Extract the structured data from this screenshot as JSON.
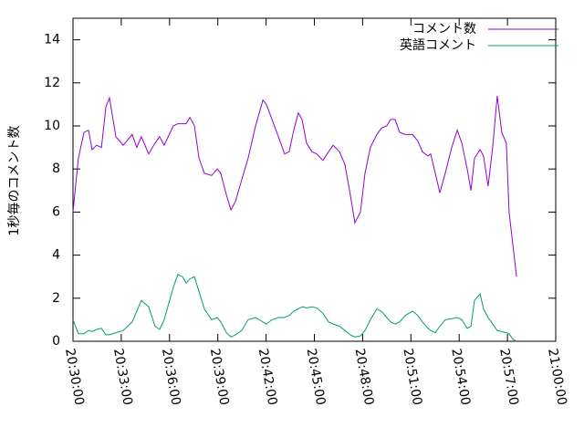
{
  "chart_data": {
    "type": "line",
    "ylabel": "1秒毎のコメント数",
    "x": [
      "20:30:00",
      "20:30:20",
      "20:30:41",
      "20:30:58",
      "20:31:11",
      "20:31:28",
      "20:31:46",
      "20:32:03",
      "20:32:16",
      "20:32:40",
      "20:33:07",
      "20:33:41",
      "20:33:58",
      "20:34:15",
      "20:34:42",
      "20:35:06",
      "20:35:23",
      "20:35:40",
      "20:36:14",
      "20:36:31",
      "20:36:48",
      "20:37:02",
      "20:37:16",
      "20:37:33",
      "20:37:50",
      "20:38:10",
      "20:38:37",
      "20:38:58",
      "20:39:11",
      "20:39:32",
      "20:39:49",
      "20:40:06",
      "20:40:29",
      "20:40:53",
      "20:41:21",
      "20:41:48",
      "20:42:01",
      "20:42:22",
      "20:42:46",
      "20:43:09",
      "20:43:26",
      "20:43:43",
      "20:44:00",
      "20:44:14",
      "20:44:31",
      "20:44:51",
      "20:45:09",
      "20:45:32",
      "20:45:53",
      "20:46:10",
      "20:46:34",
      "20:46:54",
      "20:47:14",
      "20:47:31",
      "20:47:52",
      "20:48:09",
      "20:48:29",
      "20:48:53",
      "20:49:10",
      "20:49:30",
      "20:49:44",
      "20:50:01",
      "20:50:18",
      "20:50:39",
      "20:51:06",
      "20:51:26",
      "20:51:43",
      "20:52:04",
      "20:52:14",
      "20:52:31",
      "20:52:48",
      "20:53:08",
      "20:53:32",
      "20:53:53",
      "20:54:10",
      "20:54:30",
      "20:54:44",
      "20:54:57",
      "20:55:18",
      "20:55:31",
      "20:55:48",
      "20:56:05",
      "20:56:22",
      "20:56:39",
      "20:56:56",
      "20:57:06",
      "20:57:20",
      "20:57:34"
    ],
    "series": [
      {
        "name": "コメント数",
        "color": "#9400d3",
        "values": [
          6.0,
          8.5,
          9.7,
          9.8,
          8.9,
          9.1,
          9.0,
          10.9,
          11.3,
          9.5,
          9.1,
          9.6,
          9.0,
          9.5,
          8.7,
          9.2,
          9.5,
          9.1,
          10.0,
          10.1,
          10.1,
          10.1,
          10.4,
          10.0,
          8.5,
          7.8,
          7.7,
          8.0,
          7.8,
          6.8,
          6.1,
          6.5,
          7.5,
          8.5,
          10.0,
          11.2,
          11.0,
          10.3,
          9.5,
          8.7,
          8.8,
          9.8,
          10.6,
          10.3,
          9.2,
          8.8,
          8.7,
          8.4,
          8.8,
          9.1,
          8.8,
          8.2,
          6.8,
          5.5,
          6.0,
          7.8,
          9.0,
          9.6,
          9.9,
          10.0,
          10.3,
          10.3,
          9.7,
          9.6,
          9.6,
          9.3,
          8.8,
          8.6,
          8.7,
          7.8,
          6.9,
          7.8,
          9.0,
          9.8,
          9.2,
          8.0,
          7.0,
          8.5,
          8.9,
          8.6,
          7.2,
          9.0,
          11.4,
          9.7,
          9.2,
          6.0,
          4.5,
          3.0
        ]
      },
      {
        "name": "英語コメント",
        "color": "#009e73",
        "values": [
          1.0,
          0.35,
          0.35,
          0.5,
          0.45,
          0.55,
          0.6,
          0.3,
          0.3,
          0.4,
          0.5,
          0.9,
          1.4,
          1.9,
          1.6,
          0.7,
          0.55,
          1.0,
          2.5,
          3.1,
          3.0,
          2.7,
          2.9,
          3.0,
          2.3,
          1.5,
          1.0,
          1.1,
          0.9,
          0.4,
          0.2,
          0.3,
          0.5,
          1.0,
          1.1,
          0.9,
          0.8,
          1.0,
          1.1,
          1.1,
          1.2,
          1.4,
          1.5,
          1.6,
          1.55,
          1.6,
          1.55,
          1.3,
          0.9,
          0.8,
          0.7,
          0.5,
          0.3,
          0.2,
          0.25,
          0.5,
          1.0,
          1.5,
          1.4,
          1.1,
          0.9,
          0.8,
          0.9,
          1.2,
          1.4,
          1.2,
          0.9,
          0.6,
          0.5,
          0.4,
          0.7,
          1.0,
          1.05,
          1.1,
          1.0,
          0.6,
          0.7,
          1.9,
          2.2,
          1.5,
          1.1,
          0.8,
          0.5,
          0.45,
          0.4,
          0.35,
          0.1,
          0
        ]
      }
    ],
    "xlim": [
      "20:30:00",
      "21:00:00"
    ],
    "xticks": [
      "20:30:00",
      "20:33:00",
      "20:36:00",
      "20:39:00",
      "20:42:00",
      "20:45:00",
      "20:48:00",
      "20:51:00",
      "20:54:00",
      "20:57:00",
      "21:00:00"
    ],
    "ylim": [
      0,
      15
    ],
    "yticks": [
      0,
      2,
      4,
      6,
      8,
      10,
      12,
      14
    ],
    "legend": "top-right",
    "grid": false
  }
}
